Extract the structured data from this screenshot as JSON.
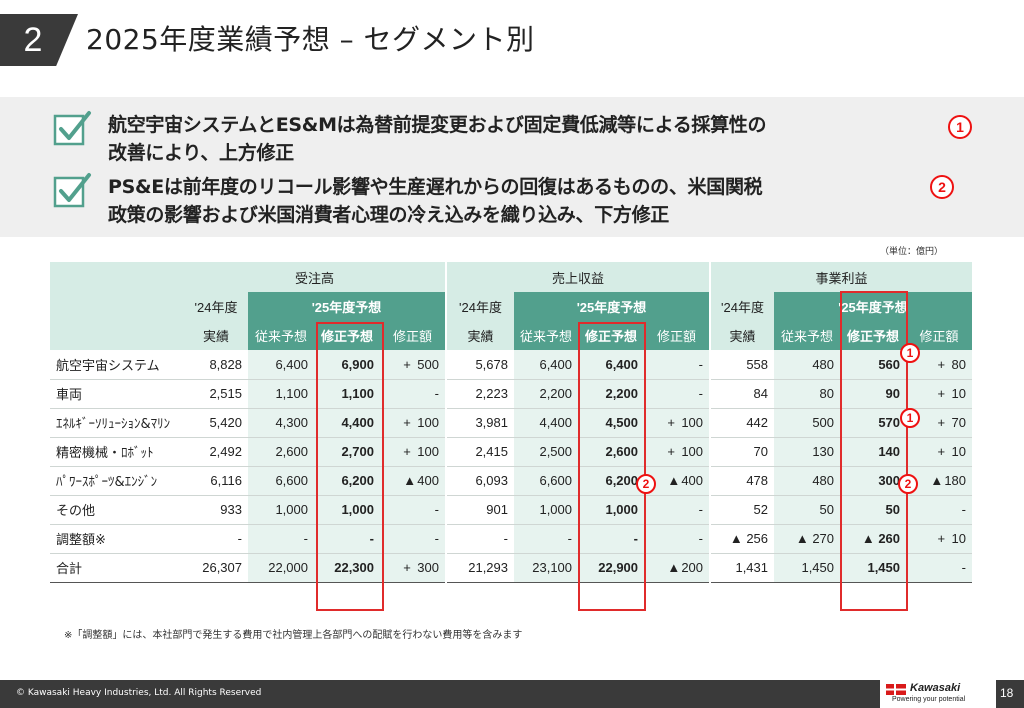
{
  "header": {
    "section_number": "2",
    "title": "2025年度業績予想 – セグメント別"
  },
  "summary": {
    "points": [
      {
        "text_line1": "航空宇宙システムとES&Mは為替前提変更および固定費低減等による採算性の",
        "text_line2": "改善により、上方修正",
        "marker": "1"
      },
      {
        "text_line1": "PS&Eは前年度のリコール影響や生産遅れからの回復はあるものの、米国関税",
        "text_line2": "政策の影響および米国消費者心理の冷え込みを織り込み、下方修正",
        "marker": "2"
      }
    ]
  },
  "unit_note": "（単位：億円）",
  "table": {
    "groups": [
      "受注高",
      "売上収益",
      "事業利益"
    ],
    "prev_label_top": "'24年度",
    "prev_label_bottom": "実績",
    "forecast_label": "'25年度予想",
    "sub_headers": [
      "従来予想",
      "修正予想",
      "修正額"
    ],
    "rows": [
      {
        "label": "航空宇宙システム",
        "cells": [
          [
            "8,828",
            "6,400",
            "6,900",
            "+",
            "500"
          ],
          [
            "5,678",
            "6,400",
            "6,400",
            "",
            "-"
          ],
          [
            "558",
            "480",
            "560",
            "+",
            "80"
          ]
        ]
      },
      {
        "label": "車両",
        "cells": [
          [
            "2,515",
            "1,100",
            "1,100",
            "",
            "-"
          ],
          [
            "2,223",
            "2,200",
            "2,200",
            "",
            "-"
          ],
          [
            "84",
            "80",
            "90",
            "+",
            "10"
          ]
        ]
      },
      {
        "label": "ｴﾈﾙｷﾞｰｿﾘｭｰｼｮﾝ&ﾏﾘﾝ",
        "cells": [
          [
            "5,420",
            "4,300",
            "4,400",
            "+",
            "100"
          ],
          [
            "3,981",
            "4,400",
            "4,500",
            "+",
            "100"
          ],
          [
            "442",
            "500",
            "570",
            "+",
            "70"
          ]
        ]
      },
      {
        "label": "精密機械・ﾛﾎﾞｯﾄ",
        "cells": [
          [
            "2,492",
            "2,600",
            "2,700",
            "+",
            "100"
          ],
          [
            "2,415",
            "2,500",
            "2,600",
            "+",
            "100"
          ],
          [
            "70",
            "130",
            "140",
            "+",
            "10"
          ]
        ]
      },
      {
        "label": "ﾊﾟﾜｰｽﾎﾟｰﾂ&ｴﾝｼﾞﾝ",
        "cells": [
          [
            "6,116",
            "6,600",
            "6,200",
            "▲",
            "400"
          ],
          [
            "6,093",
            "6,600",
            "6,200",
            "▲",
            "400"
          ],
          [
            "478",
            "480",
            "300",
            "▲",
            "180"
          ]
        ]
      },
      {
        "label": "その他",
        "cells": [
          [
            "933",
            "1,000",
            "1,000",
            "",
            "-"
          ],
          [
            "901",
            "1,000",
            "1,000",
            "",
            "-"
          ],
          [
            "52",
            "50",
            "50",
            "",
            "-"
          ]
        ]
      },
      {
        "label": "調整額※",
        "cells": [
          [
            "-",
            "-",
            "-",
            "",
            "-"
          ],
          [
            "-",
            "-",
            "-",
            "",
            "-"
          ],
          [
            "▲ 256",
            "▲ 270",
            "▲ 260",
            "+",
            "10"
          ]
        ]
      },
      {
        "label": "合計",
        "cells": [
          [
            "26,307",
            "22,000",
            "22,300",
            "+",
            "300"
          ],
          [
            "21,293",
            "23,100",
            "22,900",
            "▲",
            "200"
          ],
          [
            "1,431",
            "1,450",
            "1,450",
            "",
            "-"
          ]
        ]
      }
    ],
    "markers": {
      "up": "1",
      "down": "2"
    }
  },
  "footnote": "※「調整額」には、本社部門で発生する費用で社内管理上各部門への配賦を行わない費用等を含みます",
  "footer": {
    "copyright": "© Kawasaki Heavy Industries, Ltd. All Rights Reserved",
    "logo_name": "Kawasaki",
    "logo_tagline": "Powering your potential",
    "page_number": "18"
  },
  "colors": {
    "accent_green": "#52a08d",
    "light_green": "#d6ece5",
    "highlight_red": "#e02b2b"
  }
}
